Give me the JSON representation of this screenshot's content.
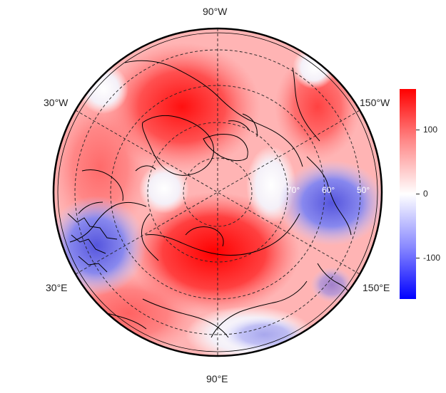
{
  "map": {
    "projection": "north-polar stereographic",
    "longitude_labels": {
      "top": "90°W",
      "upper_left": "30°W",
      "upper_right": "150°W",
      "lower_left": "30°E",
      "lower_right": "150°E",
      "bottom": "90°E"
    },
    "latitude_labels": [
      "70°",
      "60°",
      "50°"
    ],
    "field_colors": {
      "max": "#ff0000",
      "zero": "#ffffff",
      "min": "#0000ff"
    }
  },
  "colorbar": {
    "range": [
      -170,
      170
    ],
    "ticks": [
      "100",
      "0",
      "-100"
    ],
    "tick_values": [
      100,
      0,
      -100
    ]
  }
}
